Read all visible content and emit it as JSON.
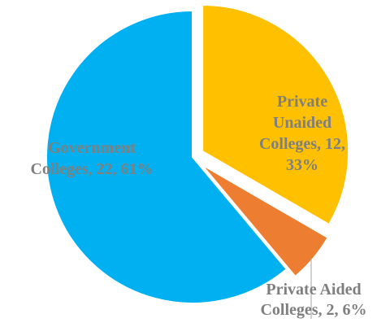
{
  "chart_data": {
    "type": "pie",
    "slices": [
      {
        "label_lines": [
          "Private",
          "Unaided",
          "Colleges, 12,",
          "33%"
        ],
        "value": 12,
        "percent": "33%",
        "color": "#FFC000",
        "label_color": "#7F7F7F"
      },
      {
        "label_lines": [
          "Private Aided",
          "Colleges, 2, 6%"
        ],
        "value": 2,
        "percent": "6%",
        "color": "#ED7D31",
        "label_color": "#7F7F7F"
      },
      {
        "label_lines": [
          "Government",
          "Colleges, 22, 61%"
        ],
        "value": 22,
        "percent": "61%",
        "color": "#00B0F0",
        "label_color": "#7F7F7F"
      }
    ],
    "legend": "none"
  }
}
